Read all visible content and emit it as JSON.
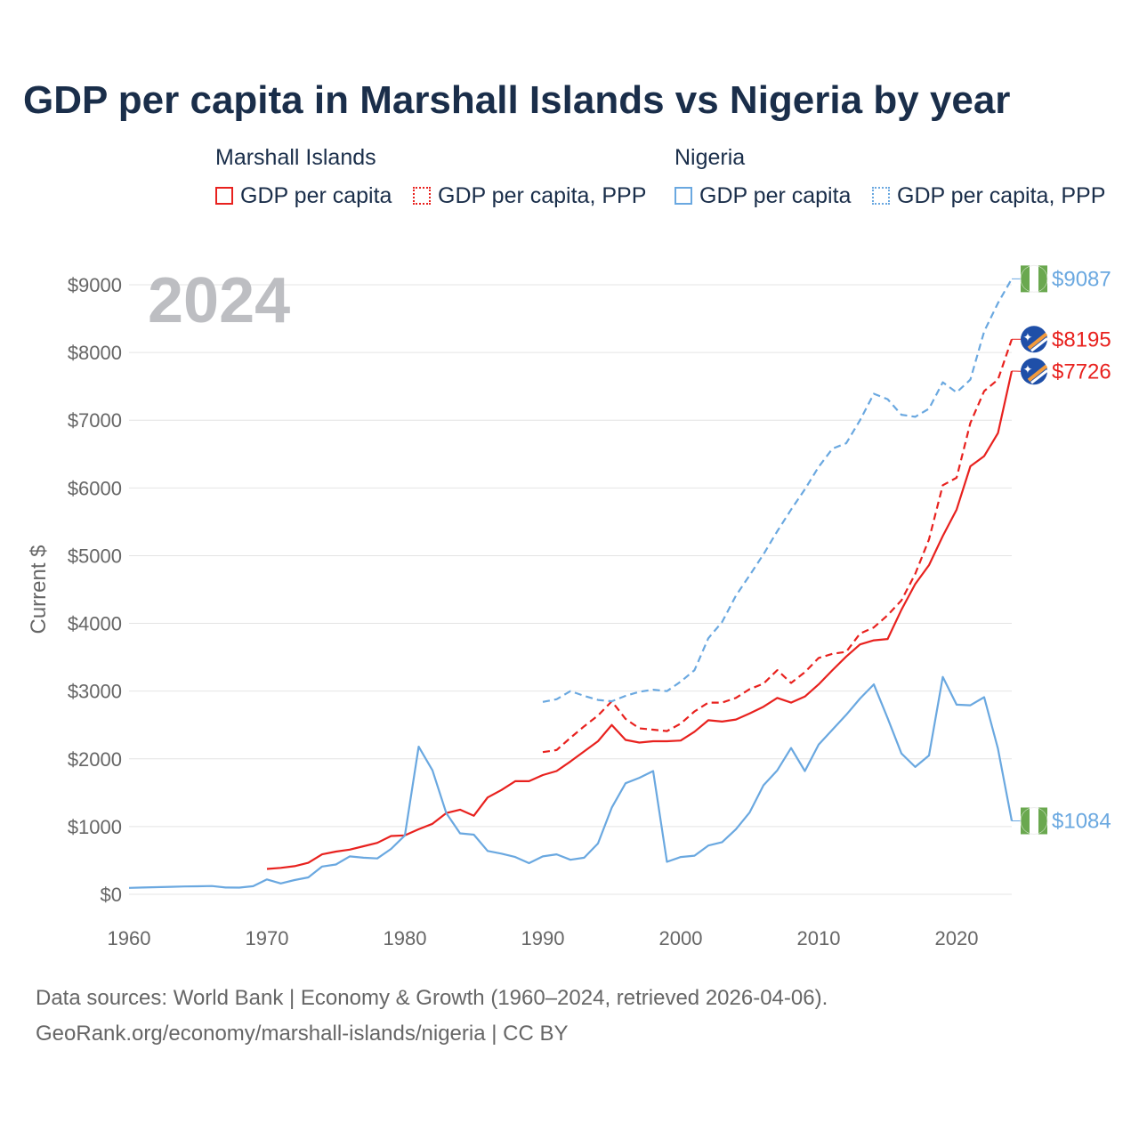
{
  "title": "GDP per capita in Marshall Islands vs Nigeria by year",
  "legend": {
    "groups": [
      {
        "name": "Marshall Islands",
        "items": [
          "GDP per capita",
          "GDP per capita, PPP"
        ]
      },
      {
        "name": "Nigeria",
        "items": [
          "GDP per capita",
          "GDP per capita, PPP"
        ]
      }
    ]
  },
  "source": {
    "line1": "Data sources: World Bank | Economy & Growth (1960–2024, retrieved 2026-04-06).",
    "line2": "GeoRank.org/economy/marshall-islands/nigeria | CC BY"
  },
  "colors": {
    "marshall": "#e8211e",
    "nigeria": "#6aa8e0",
    "text": "#1a2e4a",
    "grid": "#e4e4e4",
    "year": "#bdbec2"
  },
  "chart_data": {
    "type": "line",
    "current_year": "2024",
    "ylabel": "Current $",
    "ylim": [
      0,
      9000
    ],
    "xlim": [
      1960,
      2024
    ],
    "y_ticks": [
      0,
      1000,
      2000,
      3000,
      4000,
      5000,
      6000,
      7000,
      8000,
      9000
    ],
    "y_tick_labels": [
      "$0",
      "$1000",
      "$2000",
      "$3000",
      "$4000",
      "$5000",
      "$6000",
      "$7000",
      "$8000",
      "$9000"
    ],
    "x_ticks": [
      1960,
      1970,
      1980,
      1990,
      2000,
      2010,
      2020
    ],
    "x_tick_labels": [
      "1960",
      "1970",
      "1980",
      "1990",
      "2000",
      "2010",
      "2020"
    ],
    "series": [
      {
        "name": "Marshall Islands GDP per capita",
        "country": "marshall",
        "dashed": false,
        "start": 1970,
        "values": [
          375,
          390,
          415,
          465,
          590,
          630,
          660,
          710,
          760,
          860,
          870,
          960,
          1040,
          1200,
          1250,
          1160,
          1430,
          1540,
          1670,
          1670,
          1760,
          1820,
          1960,
          2110,
          2260,
          2500,
          2280,
          2240,
          2260,
          2260,
          2270,
          2400,
          2570,
          2550,
          2580,
          2670,
          2770,
          2900,
          2830,
          2920,
          3100,
          3310,
          3510,
          3690,
          3750,
          3770,
          4200,
          4580,
          4860,
          5290,
          5680,
          6320,
          6470,
          6810,
          7726
        ]
      },
      {
        "name": "Marshall Islands GDP per capita, PPP",
        "country": "marshall",
        "dashed": true,
        "start": 1990,
        "values": [
          2100,
          2130,
          2310,
          2480,
          2640,
          2850,
          2590,
          2450,
          2430,
          2410,
          2520,
          2700,
          2830,
          2830,
          2900,
          3030,
          3110,
          3310,
          3120,
          3280,
          3490,
          3550,
          3580,
          3850,
          3940,
          4120,
          4340,
          4730,
          5240,
          6040,
          6150,
          6960,
          7430,
          7600,
          8195
        ]
      },
      {
        "name": "Nigeria GDP per capita",
        "country": "nigeria",
        "dashed": false,
        "start": 1960,
        "values": [
          95,
          100,
          105,
          110,
          115,
          118,
          122,
          100,
          98,
          120,
          220,
          160,
          210,
          250,
          410,
          440,
          560,
          540,
          530,
          670,
          870,
          2180,
          1830,
          1200,
          900,
          880,
          640,
          600,
          550,
          460,
          560,
          590,
          510,
          540,
          750,
          1280,
          1640,
          1720,
          1820,
          480,
          550,
          570,
          720,
          770,
          960,
          1210,
          1610,
          1830,
          2160,
          1820,
          2210,
          2430,
          2650,
          2890,
          3100,
          2600,
          2080,
          1880,
          2050,
          3210,
          2800,
          2790,
          2910,
          2150,
          1084
        ]
      },
      {
        "name": "Nigeria GDP per capita, PPP",
        "country": "nigeria",
        "dashed": true,
        "start": 1990,
        "values": [
          2840,
          2880,
          3000,
          2930,
          2870,
          2850,
          2930,
          2990,
          3020,
          3000,
          3140,
          3310,
          3780,
          4020,
          4410,
          4710,
          5020,
          5360,
          5680,
          5980,
          6310,
          6580,
          6660,
          7000,
          7390,
          7310,
          7080,
          7050,
          7170,
          7560,
          7410,
          7600,
          8310,
          8730,
          9087
        ]
      }
    ],
    "end_labels": [
      {
        "country": "nigeria",
        "text": "$9087"
      },
      {
        "country": "marshall",
        "text": "$8195"
      },
      {
        "country": "marshall",
        "text": "$7726"
      },
      {
        "country": "nigeria",
        "text": "$1084"
      }
    ]
  }
}
